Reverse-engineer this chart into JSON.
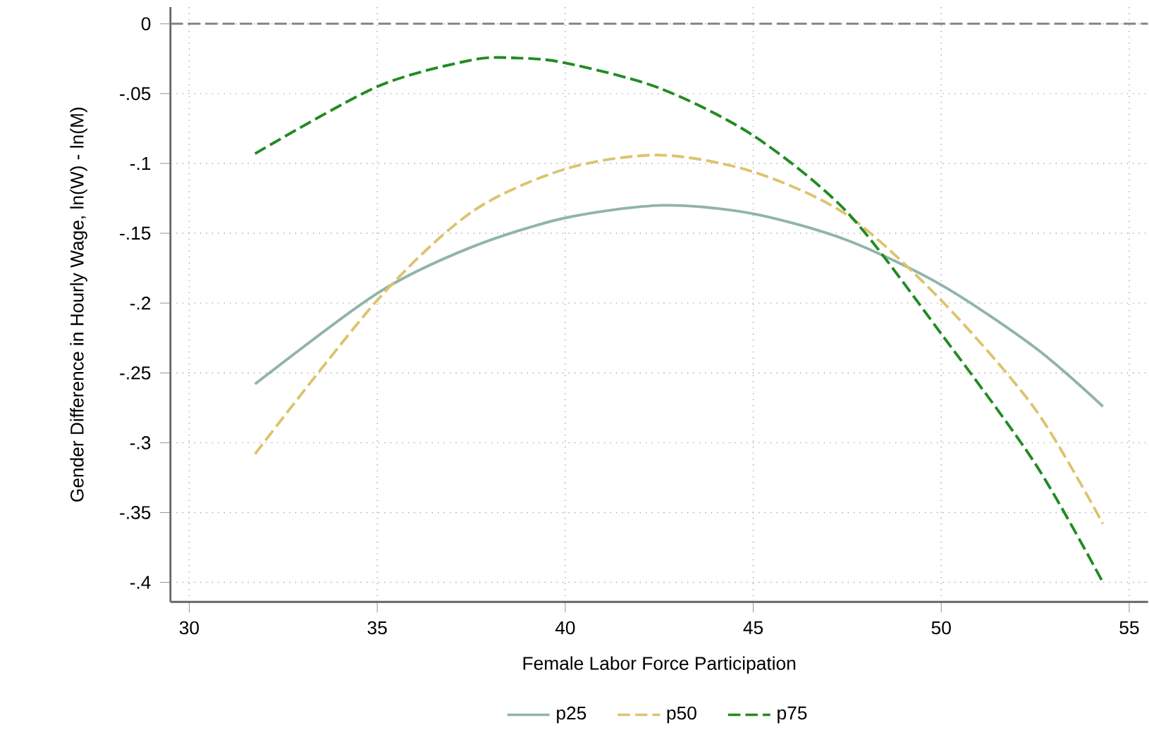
{
  "chart_data": {
    "type": "line",
    "xlabel": "Female Labor Force Participation",
    "ylabel": "Gender Difference in Hourly Wage, ln(W) - ln(M)",
    "xlim": [
      29.5,
      55.5
    ],
    "ylim": [
      -0.414,
      0.012
    ],
    "xticks": [
      30,
      35,
      40,
      45,
      50,
      55
    ],
    "yticks": [
      0,
      {
        "value": -0.05,
        "label": "-.05"
      },
      {
        "value": -0.1,
        "label": "-.1"
      },
      {
        "value": -0.15,
        "label": "-.15"
      },
      {
        "value": -0.2,
        "label": "-.2"
      },
      {
        "value": -0.25,
        "label": "-.25"
      },
      {
        "value": -0.3,
        "label": "-.3"
      },
      {
        "value": -0.35,
        "label": "-.35"
      },
      {
        "value": -0.4,
        "label": "-.4"
      }
    ],
    "grid": true,
    "legend": "bottom",
    "ref_lines": [
      {
        "axis": "y",
        "value": 0,
        "color": "#808080",
        "line_style": "dashed"
      }
    ],
    "series": [
      {
        "name": "p25",
        "color": "#90b4aa",
        "line_style": "solid",
        "x": [
          31.75,
          35,
          37.5,
          40,
          42.6,
          45,
          47.5,
          50,
          52.5,
          54.3
        ],
        "values": [
          -0.258,
          -0.193,
          -0.16,
          -0.139,
          -0.13,
          -0.136,
          -0.155,
          -0.187,
          -0.232,
          -0.274
        ]
      },
      {
        "name": "p50",
        "color": "#dcc46e",
        "line_style": "dashed",
        "x": [
          31.75,
          35,
          37.5,
          40,
          42.5,
          45,
          47.5,
          50,
          52.5,
          54.3
        ],
        "values": [
          -0.308,
          -0.198,
          -0.135,
          -0.104,
          -0.094,
          -0.106,
          -0.137,
          -0.198,
          -0.276,
          -0.358
        ]
      },
      {
        "name": "p75",
        "color": "#228b22",
        "line_style": "dashed",
        "x": [
          31.75,
          35,
          37.5,
          38.7,
          40,
          42.5,
          45,
          47.5,
          50,
          52.5,
          54.3
        ],
        "values": [
          -0.093,
          -0.045,
          -0.026,
          -0.0245,
          -0.028,
          -0.046,
          -0.08,
          -0.135,
          -0.222,
          -0.315,
          -0.4
        ]
      }
    ]
  }
}
